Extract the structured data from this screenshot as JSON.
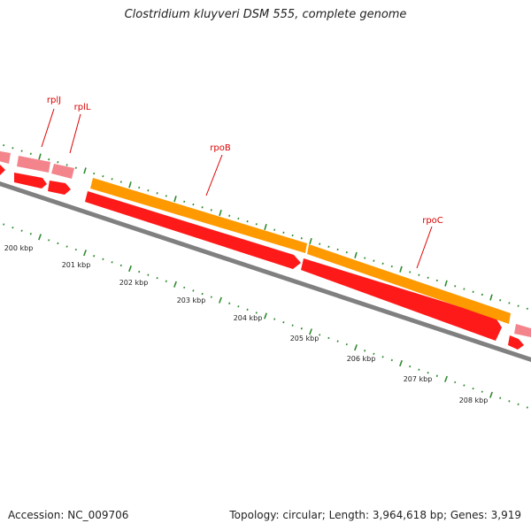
{
  "title": "Clostridium kluyveri DSM 555, complete genome",
  "accession": "Accession: NC_009706",
  "summary": "Topology: circular; Length: 3,964,618 bp; Genes: 3,919",
  "colors": {
    "background": "#ffffff",
    "backbone": "#808080",
    "tick": "#2e8b2e",
    "gene_red": "#ee0000",
    "gene_pink": "#f08080",
    "gene_orange": "#ff9900",
    "label_red": "#dd0000"
  },
  "scale_labels": [
    "200 kbp",
    "201 kbp",
    "202 kbp",
    "203 kbp",
    "204 kbp",
    "205 kbp",
    "206 kbp",
    "207 kbp",
    "208 kbp"
  ],
  "gene_labels": [
    "rplJ",
    "rplL",
    "rpoB",
    "rpoC"
  ]
}
